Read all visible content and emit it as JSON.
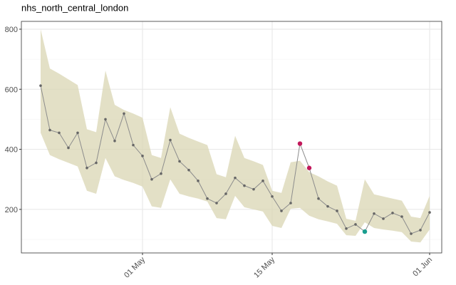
{
  "chart_data": {
    "type": "line",
    "title": "nhs_north_central_london",
    "categories": [
      "20 Apr",
      "21 Apr",
      "22 Apr",
      "23 Apr",
      "24 Apr",
      "25 Apr",
      "26 Apr",
      "27 Apr",
      "28 Apr",
      "29 Apr",
      "30 Apr",
      "01 May",
      "02 May",
      "03 May",
      "04 May",
      "05 May",
      "06 May",
      "07 May",
      "08 May",
      "09 May",
      "10 May",
      "11 May",
      "12 May",
      "13 May",
      "14 May",
      "15 May",
      "16 May",
      "17 May",
      "18 May",
      "19 May",
      "20 May",
      "21 May",
      "22 May",
      "23 May",
      "24 May",
      "25 May",
      "26 May",
      "27 May",
      "28 May",
      "29 May",
      "30 May",
      "31 May",
      "01 Jun"
    ],
    "series": [
      {
        "color": "#8c8c8c",
        "marker_color": "#666666",
        "values": [
          612,
          464,
          455,
          405,
          455,
          338,
          355,
          500,
          428,
          519,
          414,
          378,
          300,
          319,
          431,
          360,
          331,
          295,
          236,
          221,
          252,
          305,
          279,
          267,
          295,
          243,
          195,
          221,
          419,
          338,
          236,
          210,
          195,
          136,
          150,
          126,
          186,
          169,
          188,
          176,
          119,
          131,
          190
        ]
      }
    ],
    "band": {
      "color": "#d9d6b3",
      "lower": [
        455,
        381,
        367,
        355,
        343,
        262,
        252,
        371,
        310,
        298,
        288,
        276,
        210,
        205,
        300,
        252,
        243,
        236,
        226,
        171,
        167,
        245,
        207,
        200,
        193,
        145,
        138,
        202,
        205,
        179,
        167,
        160,
        152,
        114,
        112,
        157,
        138,
        133,
        129,
        124,
        93,
        90,
        133
      ],
      "upper": [
        800,
        669,
        652,
        633,
        614,
        467,
        457,
        662,
        548,
        531,
        519,
        505,
        381,
        371,
        540,
        452,
        438,
        426,
        414,
        317,
        307,
        445,
        371,
        360,
        348,
        262,
        255,
        357,
        362,
        324,
        310,
        293,
        279,
        169,
        162,
        300,
        250,
        243,
        236,
        229,
        176,
        171,
        245
      ]
    },
    "highlights": [
      {
        "color": "#c2185b",
        "values": [
          null,
          null,
          null,
          null,
          null,
          null,
          null,
          null,
          null,
          null,
          null,
          null,
          null,
          null,
          null,
          null,
          null,
          null,
          null,
          null,
          null,
          null,
          null,
          null,
          null,
          null,
          null,
          null,
          419,
          338,
          null,
          null,
          null,
          null,
          null,
          null,
          null,
          null,
          null,
          null,
          null,
          null,
          null
        ]
      },
      {
        "color": "#1a9e8f",
        "values": [
          null,
          null,
          null,
          null,
          null,
          null,
          null,
          null,
          null,
          null,
          null,
          null,
          null,
          null,
          null,
          null,
          null,
          null,
          null,
          null,
          null,
          null,
          null,
          null,
          null,
          null,
          null,
          null,
          null,
          null,
          null,
          null,
          null,
          null,
          null,
          126,
          null,
          null,
          null,
          null,
          null,
          null,
          null
        ]
      }
    ],
    "xticks": [
      "01 May",
      "15 May",
      "01 Jun"
    ],
    "ylim": [
      55,
      826
    ],
    "yticks": [
      200,
      400,
      600,
      800
    ],
    "minor_yticks": [
      100,
      300,
      500,
      700
    ],
    "grid": true
  }
}
